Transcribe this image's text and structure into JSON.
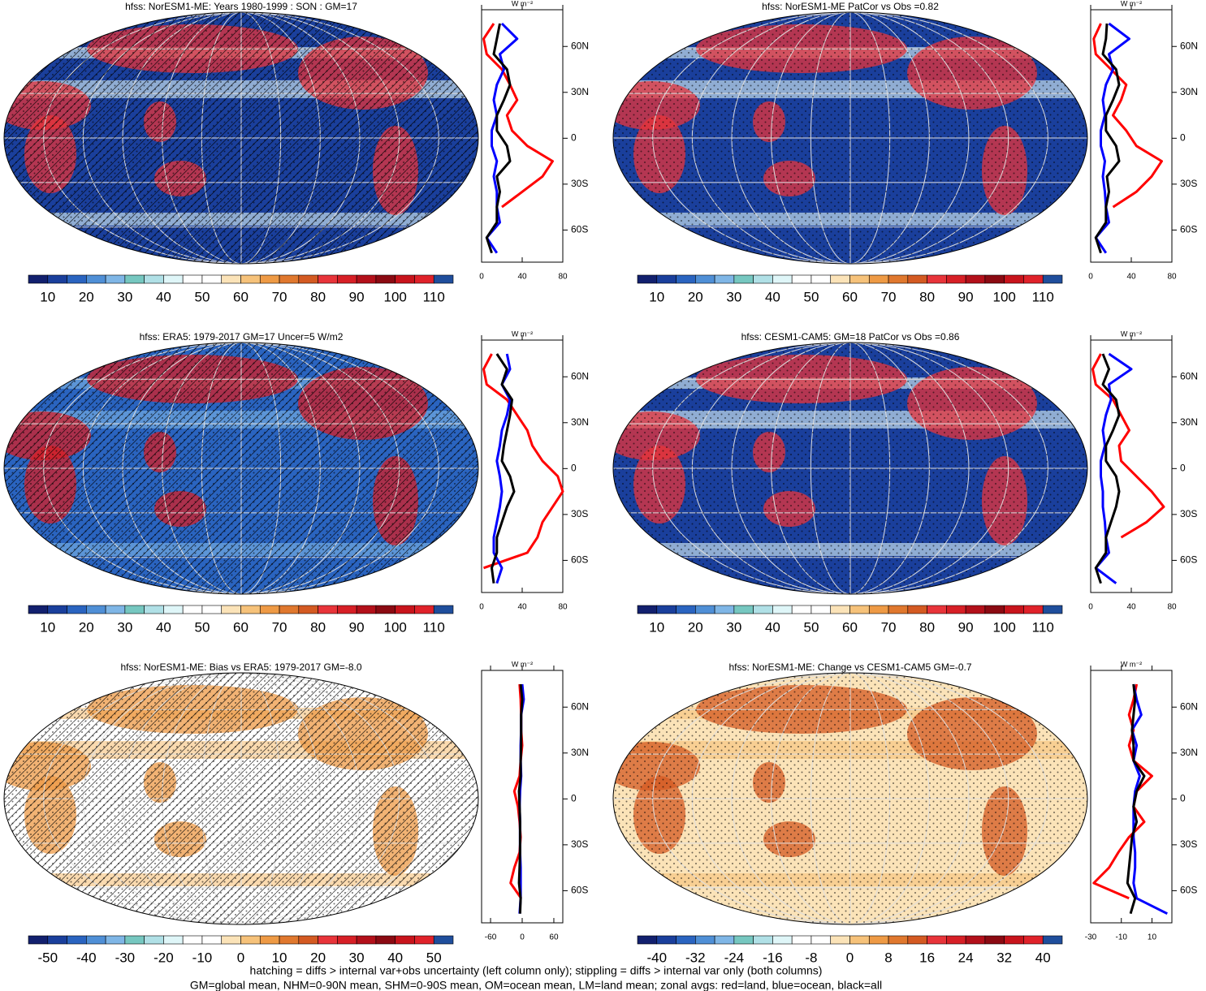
{
  "chart_data": [
    {
      "type": "line",
      "title": "hfss: NorESM1-ME: Years 1980-1999 : SON : GM=17",
      "unit": "W m⁻²",
      "lat": [
        75,
        65,
        55,
        45,
        35,
        25,
        15,
        5,
        -5,
        -15,
        -25,
        -35,
        -45,
        -55,
        -65,
        -75
      ],
      "series": [
        {
          "color": "#ff0000",
          "values": [
            12,
            2,
            5,
            20,
            28,
            35,
            25,
            30,
            45,
            70,
            60,
            40,
            20,
            null,
            5,
            null
          ]
        },
        {
          "color": "#0000ff",
          "values": [
            20,
            35,
            18,
            22,
            15,
            12,
            15,
            10,
            10,
            15,
            12,
            15,
            15,
            18,
            5,
            15
          ]
        },
        {
          "color": "#000000",
          "values": [
            18,
            15,
            12,
            25,
            28,
            22,
            15,
            15,
            25,
            28,
            15,
            18,
            15,
            15,
            5,
            10
          ]
        }
      ],
      "xlim": [
        0,
        80
      ],
      "xticks": [
        0,
        40,
        80
      ],
      "ylim": [
        -81,
        84
      ],
      "yticks": [
        {
          "value": 60,
          "label": "60N"
        },
        {
          "value": 30,
          "label": "30N"
        },
        0,
        {
          "value": -30,
          "label": "30S"
        },
        {
          "value": -60,
          "label": "60S"
        }
      ],
      "colorbar": {
        "lim": [
          5,
          115
        ],
        "ticks": [
          10,
          20,
          30,
          40,
          50,
          60,
          70,
          80,
          90,
          100,
          110
        ],
        "colors": [
          "#12206e",
          "#1a3f9c",
          "#2a64c0",
          "#4f8fd6",
          "#7fb6e6",
          "#76c7c0",
          "#b0e0e6",
          "#dff6f8",
          "#ffffff",
          "#ffffff",
          "#fbe3b8",
          "#f6c27a",
          "#ee9a45",
          "#e0782e",
          "#d45a22",
          "#e8343a",
          "#d71f26",
          "#b3101a",
          "#8b0a12",
          "#c8141c",
          "#e0222a",
          "#1f4e9c"
        ]
      }
    },
    {
      "type": "line",
      "title": "hfss: NorESM1-ME PatCor vs Obs =0.82",
      "unit": "W m⁻²",
      "lat": [
        75,
        65,
        55,
        45,
        35,
        25,
        15,
        5,
        -5,
        -15,
        -25,
        -35,
        -45,
        -55,
        -65,
        -75
      ],
      "series": [
        {
          "color": "#ff0000",
          "values": [
            10,
            3,
            5,
            20,
            35,
            30,
            22,
            35,
            45,
            70,
            60,
            45,
            22,
            null,
            5,
            null
          ]
        },
        {
          "color": "#0000ff",
          "values": [
            18,
            38,
            18,
            22,
            15,
            12,
            14,
            10,
            10,
            14,
            12,
            14,
            15,
            18,
            5,
            15
          ]
        },
        {
          "color": "#000000",
          "values": [
            16,
            15,
            12,
            25,
            28,
            22,
            15,
            15,
            25,
            28,
            16,
            18,
            15,
            15,
            5,
            10
          ]
        }
      ],
      "xlim": [
        0,
        80
      ],
      "xticks": [
        0,
        40,
        80
      ],
      "ylim": [
        -81,
        84
      ],
      "yticks": [
        {
          "value": 60,
          "label": "60N"
        },
        {
          "value": 30,
          "label": "30N"
        },
        0,
        {
          "value": -30,
          "label": "30S"
        },
        {
          "value": -60,
          "label": "60S"
        }
      ],
      "colorbar": {
        "lim": [
          5,
          115
        ],
        "ticks": [
          10,
          20,
          30,
          40,
          50,
          60,
          70,
          80,
          90,
          100,
          110
        ],
        "colors": [
          "#12206e",
          "#1a3f9c",
          "#2a64c0",
          "#4f8fd6",
          "#7fb6e6",
          "#76c7c0",
          "#b0e0e6",
          "#dff6f8",
          "#ffffff",
          "#ffffff",
          "#fbe3b8",
          "#f6c27a",
          "#ee9a45",
          "#e0782e",
          "#d45a22",
          "#e8343a",
          "#d71f26",
          "#b3101a",
          "#8b0a12",
          "#c8141c",
          "#e0222a",
          "#1f4e9c"
        ]
      }
    },
    {
      "type": "line",
      "title": "hfss: ERA5: 1979-2017 GM=17 Uncer=5 W/m2",
      "unit": "W m⁻²",
      "lat": [
        75,
        65,
        55,
        45,
        35,
        25,
        15,
        5,
        -5,
        -15,
        -25,
        -35,
        -45,
        -55,
        -65,
        -75
      ],
      "series": [
        {
          "color": "#ff0000",
          "values": [
            10,
            2,
            5,
            25,
            35,
            45,
            50,
            60,
            75,
            80,
            70,
            60,
            55,
            45,
            2,
            null
          ]
        },
        {
          "color": "#0000ff",
          "values": [
            25,
            28,
            20,
            28,
            25,
            20,
            18,
            15,
            18,
            20,
            18,
            15,
            12,
            12,
            20,
            15
          ]
        },
        {
          "color": "#000000",
          "values": [
            15,
            25,
            20,
            30,
            28,
            25,
            22,
            20,
            28,
            32,
            25,
            20,
            15,
            15,
            10,
            12
          ]
        }
      ],
      "xlim": [
        0,
        80
      ],
      "xticks": [
        0,
        40,
        80
      ],
      "ylim": [
        -81,
        84
      ],
      "yticks": [
        {
          "value": 60,
          "label": "60N"
        },
        {
          "value": 30,
          "label": "30N"
        },
        0,
        {
          "value": -30,
          "label": "30S"
        },
        {
          "value": -60,
          "label": "60S"
        }
      ],
      "colorbar": {
        "lim": [
          5,
          115
        ],
        "ticks": [
          10,
          20,
          30,
          40,
          50,
          60,
          70,
          80,
          90,
          100,
          110
        ],
        "colors": [
          "#12206e",
          "#1a3f9c",
          "#2a64c0",
          "#4f8fd6",
          "#7fb6e6",
          "#76c7c0",
          "#b0e0e6",
          "#dff6f8",
          "#ffffff",
          "#ffffff",
          "#fbe3b8",
          "#f6c27a",
          "#ee9a45",
          "#e0782e",
          "#d45a22",
          "#e8343a",
          "#d71f26",
          "#b3101a",
          "#8b0a12",
          "#c8141c",
          "#e0222a",
          "#1f4e9c"
        ]
      }
    },
    {
      "type": "line",
      "title": "hfss: CESM1-CAM5: GM=18 PatCor vs Obs =0.86",
      "unit": "W m⁻²",
      "lat": [
        75,
        65,
        55,
        45,
        35,
        25,
        15,
        5,
        -5,
        -15,
        -25,
        -35,
        -45,
        -55,
        -65,
        -75
      ],
      "series": [
        {
          "color": "#ff0000",
          "values": [
            10,
            2,
            5,
            22,
            30,
            38,
            28,
            30,
            45,
            60,
            72,
            55,
            30,
            null,
            5,
            null
          ]
        },
        {
          "color": "#0000ff",
          "values": [
            18,
            40,
            18,
            20,
            15,
            12,
            14,
            10,
            10,
            12,
            12,
            14,
            15,
            18,
            5,
            25
          ]
        },
        {
          "color": "#000000",
          "values": [
            12,
            18,
            12,
            25,
            28,
            22,
            15,
            15,
            25,
            28,
            25,
            20,
            15,
            15,
            5,
            10
          ]
        }
      ],
      "xlim": [
        0,
        80
      ],
      "xticks": [
        0,
        40,
        80
      ],
      "ylim": [
        -81,
        84
      ],
      "yticks": [
        {
          "value": 60,
          "label": "60N"
        },
        {
          "value": 30,
          "label": "30N"
        },
        0,
        {
          "value": -30,
          "label": "30S"
        },
        {
          "value": -60,
          "label": "60S"
        }
      ],
      "colorbar": {
        "lim": [
          5,
          115
        ],
        "ticks": [
          10,
          20,
          30,
          40,
          50,
          60,
          70,
          80,
          90,
          100,
          110
        ],
        "colors": [
          "#12206e",
          "#1a3f9c",
          "#2a64c0",
          "#4f8fd6",
          "#7fb6e6",
          "#76c7c0",
          "#b0e0e6",
          "#dff6f8",
          "#ffffff",
          "#ffffff",
          "#fbe3b8",
          "#f6c27a",
          "#ee9a45",
          "#e0782e",
          "#d45a22",
          "#e8343a",
          "#d71f26",
          "#b3101a",
          "#8b0a12",
          "#c8141c",
          "#e0222a",
          "#1f4e9c"
        ]
      }
    },
    {
      "type": "line",
      "title": "hfss: NorESM1-ME: Bias vs ERA5: 1979-2017  GM=-8.0",
      "unit": "W m⁻²",
      "lat": [
        75,
        65,
        55,
        45,
        35,
        25,
        15,
        5,
        -5,
        -15,
        -25,
        -35,
        -45,
        -55,
        -65,
        -75
      ],
      "series": [
        {
          "color": "#ff0000",
          "values": [
            -5,
            -3,
            -2,
            -2,
            0,
            -3,
            -5,
            -15,
            -8,
            -5,
            -3,
            -5,
            -15,
            -22,
            -2,
            null
          ]
        },
        {
          "color": "#0000ff",
          "values": [
            0,
            3,
            -2,
            -2,
            -3,
            -3,
            -2,
            -4,
            -5,
            -4,
            -4,
            -4,
            -3,
            -3,
            -3,
            -5
          ]
        },
        {
          "color": "#000000",
          "values": [
            -3,
            0,
            -2,
            -2,
            -2,
            -3,
            -3,
            -6,
            -5,
            -4,
            -4,
            -4,
            -5,
            -6,
            -3,
            -4
          ]
        }
      ],
      "xlim": [
        -77,
        77
      ],
      "xticks": [
        -60,
        0,
        60
      ],
      "ylim": [
        -81,
        84
      ],
      "yticks": [
        {
          "value": 60,
          "label": "60N"
        },
        {
          "value": 30,
          "label": "30N"
        },
        0,
        {
          "value": -30,
          "label": "30S"
        },
        {
          "value": -60,
          "label": "60S"
        }
      ],
      "colorbar": {
        "lim": [
          -55,
          55
        ],
        "ticks": [
          -50,
          -40,
          -30,
          -20,
          -10,
          0,
          10,
          20,
          30,
          40,
          50
        ],
        "colors": [
          "#12206e",
          "#1a3f9c",
          "#2a64c0",
          "#4f8fd6",
          "#7fb6e6",
          "#76c7c0",
          "#b0e0e6",
          "#dff6f8",
          "#ffffff",
          "#ffffff",
          "#fbe3b8",
          "#f6c27a",
          "#ee9a45",
          "#e0782e",
          "#d45a22",
          "#e8343a",
          "#d71f26",
          "#b3101a",
          "#8b0a12",
          "#c8141c",
          "#e0222a",
          "#1f4e9c"
        ]
      }
    },
    {
      "type": "line",
      "title": "hfss: NorESM1-ME: Change vs CESM1-CAM5 GM=-0.7",
      "unit": "W m⁻²",
      "lat": [
        75,
        65,
        55,
        45,
        35,
        25,
        15,
        5,
        -5,
        -15,
        -25,
        -35,
        -45,
        -55,
        -65,
        -75
      ],
      "series": [
        {
          "color": "#ff0000",
          "values": [
            0,
            -2,
            -5,
            -2,
            -5,
            -2,
            10,
            0,
            -2,
            5,
            -5,
            -12,
            -18,
            -28,
            -5,
            null
          ]
        },
        {
          "color": "#0000ff",
          "values": [
            -2,
            0,
            3,
            -3,
            0,
            -2,
            2,
            -1,
            -2,
            -2,
            -2,
            -1,
            -1,
            -2,
            0,
            20
          ]
        },
        {
          "color": "#000000",
          "values": [
            -2,
            -1,
            -2,
            -3,
            -2,
            -2,
            5,
            0,
            -2,
            0,
            -3,
            -4,
            -5,
            -6,
            -1,
            -4
          ]
        }
      ],
      "xlim": [
        -30,
        23
      ],
      "xticks": [
        -30,
        -10,
        10
      ],
      "ylim": [
        -81,
        84
      ],
      "yticks": [
        {
          "value": 60,
          "label": "60N"
        },
        {
          "value": 30,
          "label": "30N"
        },
        0,
        {
          "value": -30,
          "label": "30S"
        },
        {
          "value": -60,
          "label": "60S"
        }
      ],
      "colorbar": {
        "lim": [
          -44,
          44
        ],
        "ticks": [
          -40,
          -32,
          -24,
          -16,
          -8,
          0,
          8,
          16,
          24,
          32,
          40
        ],
        "colors": [
          "#12206e",
          "#1a3f9c",
          "#2a64c0",
          "#4f8fd6",
          "#7fb6e6",
          "#76c7c0",
          "#b0e0e6",
          "#dff6f8",
          "#ffffff",
          "#ffffff",
          "#fbe3b8",
          "#f6c27a",
          "#ee9a45",
          "#e0782e",
          "#d45a22",
          "#e8343a",
          "#d71f26",
          "#b3101a",
          "#8b0a12",
          "#c8141c",
          "#e0222a",
          "#1f4e9c"
        ]
      }
    }
  ],
  "notes": [
    "hatching = diffs > internal var+obs uncertainty (left column only); stippling = diffs > internal var only (both columns)",
    "GM=global mean, NHM=0-90N mean, SHM=0-90S mean, OM=ocean mean, LM=land mean; zonal avgs: red=land, blue=ocean, black=all"
  ]
}
